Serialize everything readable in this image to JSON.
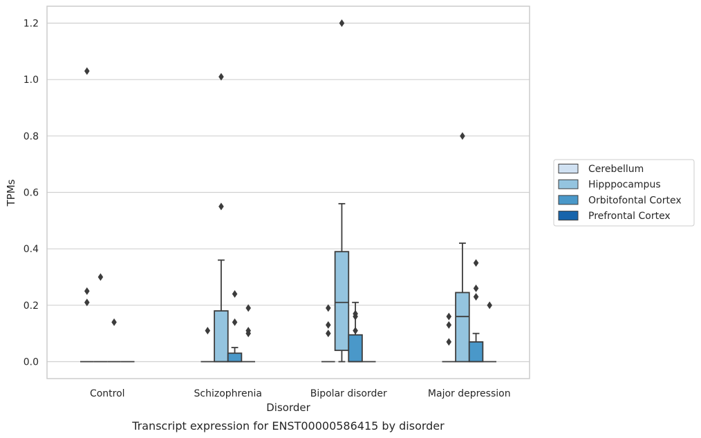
{
  "chart_data": {
    "type": "box",
    "caption": "Transcript expression for ENST00000586415 by disorder",
    "xlabel": "Disorder",
    "ylabel": "TPMs",
    "ylim": [
      -0.06,
      1.26
    ],
    "yticks": [
      0.0,
      0.2,
      0.4,
      0.6,
      0.8,
      1.0,
      1.2
    ],
    "ytick_labels": [
      "0.0",
      "0.2",
      "0.4",
      "0.6",
      "0.8",
      "1.0",
      "1.2"
    ],
    "grid": true,
    "legend_position": "right",
    "categories": [
      "Control",
      "Schizophrenia",
      "Bipolar disorder",
      "Major depression"
    ],
    "series": [
      {
        "name": "Cerebellum",
        "color": "#d0e1f2",
        "boxes": [
          {
            "q1": 0,
            "median": 0,
            "q3": 0,
            "whisker_low": 0,
            "whisker_high": 0,
            "outliers": [
              1.03,
              0.25,
              0.21
            ]
          },
          {
            "q1": 0,
            "median": 0,
            "q3": 0,
            "whisker_low": 0,
            "whisker_high": 0,
            "outliers": [
              0.11
            ]
          },
          {
            "q1": 0,
            "median": 0,
            "q3": 0,
            "whisker_low": 0,
            "whisker_high": 0,
            "outliers": [
              0.19,
              0.13,
              0.1
            ]
          },
          {
            "q1": 0,
            "median": 0,
            "q3": 0,
            "whisker_low": 0,
            "whisker_high": 0,
            "outliers": [
              0.16,
              0.13,
              0.07
            ]
          }
        ]
      },
      {
        "name": "Hipppocampus",
        "color": "#94c4df",
        "boxes": [
          {
            "q1": 0,
            "median": 0,
            "q3": 0,
            "whisker_low": 0,
            "whisker_high": 0,
            "outliers": [
              0.3
            ]
          },
          {
            "q1": 0,
            "median": 0,
            "q3": 0.18,
            "whisker_low": 0,
            "whisker_high": 0.36,
            "outliers": [
              1.01,
              0.55
            ]
          },
          {
            "q1": 0.04,
            "median": 0.21,
            "q3": 0.39,
            "whisker_low": 0,
            "whisker_high": 0.56,
            "outliers": [
              1.2
            ]
          },
          {
            "q1": 0,
            "median": 0.16,
            "q3": 0.245,
            "whisker_low": 0,
            "whisker_high": 0.42,
            "outliers": [
              0.8
            ]
          }
        ]
      },
      {
        "name": "Orbitofontal Cortex",
        "color": "#4a98c9",
        "boxes": [
          {
            "q1": 0,
            "median": 0,
            "q3": 0,
            "whisker_low": 0,
            "whisker_high": 0,
            "outliers": [
              0.14
            ]
          },
          {
            "q1": 0,
            "median": 0,
            "q3": 0.03,
            "whisker_low": 0,
            "whisker_high": 0.05,
            "outliers": [
              0.24,
              0.14
            ]
          },
          {
            "q1": 0,
            "median": 0,
            "q3": 0.095,
            "whisker_low": 0,
            "whisker_high": 0.21,
            "outliers": [
              0.17,
              0.16,
              0.11
            ]
          },
          {
            "q1": 0,
            "median": 0,
            "q3": 0.07,
            "whisker_low": 0,
            "whisker_high": 0.1,
            "outliers": [
              0.35,
              0.26,
              0.23
            ]
          }
        ]
      },
      {
        "name": "Prefrontal Cortex",
        "color": "#1764ab",
        "boxes": [
          {
            "q1": 0,
            "median": 0,
            "q3": 0,
            "whisker_low": 0,
            "whisker_high": 0,
            "outliers": []
          },
          {
            "q1": 0,
            "median": 0,
            "q3": 0,
            "whisker_low": 0,
            "whisker_high": 0,
            "outliers": [
              0.19,
              0.11,
              0.1
            ]
          },
          {
            "q1": 0,
            "median": 0,
            "q3": 0,
            "whisker_low": 0,
            "whisker_high": 0,
            "outliers": []
          },
          {
            "q1": 0,
            "median": 0,
            "q3": 0,
            "whisker_low": 0,
            "whisker_high": 0,
            "outliers": [
              0.2
            ]
          }
        ]
      }
    ]
  }
}
